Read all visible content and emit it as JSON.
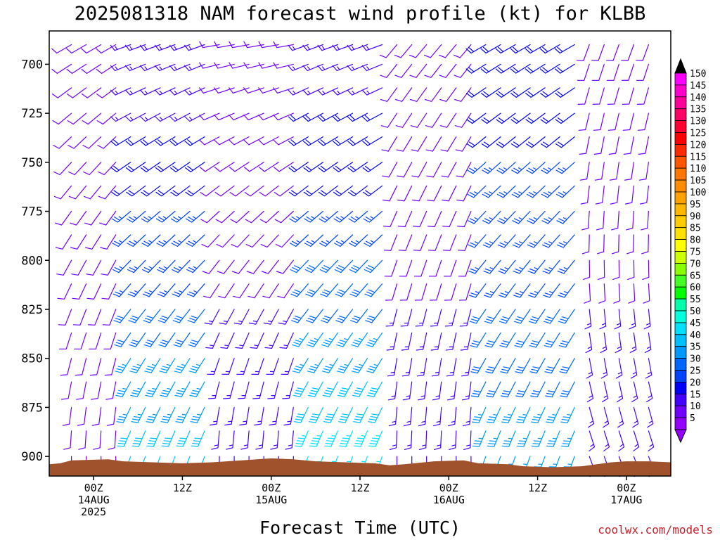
{
  "chart_data": {
    "type": "wind_barb_profile",
    "title": "2025081318 NAM forecast wind profile (kt) for KLBB",
    "xlabel": "Forecast Time (UTC)",
    "ylabel": "",
    "y_axis": {
      "unit": "hPa",
      "ticks": [
        "700",
        "725",
        "750",
        "775",
        "800",
        "825",
        "850",
        "875",
        "900"
      ],
      "range": [
        683,
        910
      ],
      "inverted": true
    },
    "x_axis": {
      "ticks": [
        {
          "hour": 0,
          "line1": "00Z",
          "line2": "14AUG",
          "line3": "2025"
        },
        {
          "hour": 12,
          "line1": "12Z",
          "line2": "",
          "line3": ""
        },
        {
          "hour": 24,
          "line1": "00Z",
          "line2": "15AUG",
          "line3": ""
        },
        {
          "hour": 36,
          "line1": "12Z",
          "line2": "",
          "line3": ""
        },
        {
          "hour": 48,
          "line1": "00Z",
          "line2": "16AUG",
          "line3": ""
        },
        {
          "hour": 60,
          "line1": "12Z",
          "line2": "",
          "line3": ""
        },
        {
          "hour": 72,
          "line1": "00Z",
          "line2": "17AUG",
          "line3": ""
        }
      ],
      "range": [
        -6,
        78
      ]
    },
    "colorbar": {
      "labels": [
        "150",
        "145",
        "140",
        "135",
        "130",
        "125",
        "120",
        "115",
        "110",
        "105",
        "100",
        "95",
        "90",
        "85",
        "80",
        "75",
        "70",
        "65",
        "60",
        "55",
        "50",
        "45",
        "40",
        "35",
        "30",
        "25",
        "20",
        "15",
        "10",
        "5"
      ],
      "colors": [
        "#ff00ff",
        "#ff00cc",
        "#ff0099",
        "#ff0066",
        "#ff0033",
        "#ff0000",
        "#ff2a00",
        "#ff5500",
        "#ff7700",
        "#ff8c00",
        "#ffa200",
        "#ffb700",
        "#ffcc00",
        "#ffe100",
        "#ffff00",
        "#ccff00",
        "#88ff00",
        "#44ff22",
        "#00ff00",
        "#00ffaa",
        "#00ffdd",
        "#00e0ff",
        "#00c0ff",
        "#0099ff",
        "#0066ff",
        "#0044ff",
        "#0000ff",
        "#4400ff",
        "#7000ff",
        "#9400ff"
      ],
      "top_color": "#000000",
      "bottom_color": "#9400ff"
    },
    "terrain_color": "#a0522d",
    "barb_times_hours": [
      -3,
      -1,
      1,
      3,
      5,
      7,
      9,
      11,
      13,
      15,
      17,
      19,
      21,
      23,
      25,
      27,
      29,
      31,
      33,
      35,
      37,
      39,
      41,
      43,
      45,
      47,
      49,
      51,
      53,
      55,
      57,
      59,
      61,
      63,
      65,
      67,
      69,
      71,
      73,
      75
    ],
    "barb_levels_hpa": [
      690,
      700,
      712,
      725,
      737,
      750,
      762,
      775,
      787,
      800,
      812,
      825,
      837,
      850,
      862,
      875,
      887,
      900
    ],
    "wind_regimes": [
      {
        "start_hour": -6,
        "end_hour": 4,
        "upper_dir": 240,
        "upper_kt": 10,
        "lower_dir": 180,
        "lower_kt": 10
      },
      {
        "start_hour": 4,
        "end_hour": 16,
        "upper_dir": 250,
        "upper_kt": 15,
        "lower_dir": 200,
        "lower_kt": 40
      },
      {
        "start_hour": 16,
        "end_hour": 28,
        "upper_dir": 260,
        "upper_kt": 10,
        "lower_dir": 180,
        "lower_kt": 15
      },
      {
        "start_hour": 28,
        "end_hour": 40,
        "upper_dir": 250,
        "upper_kt": 15,
        "lower_dir": 200,
        "lower_kt": 45
      },
      {
        "start_hour": 40,
        "end_hour": 52,
        "upper_dir": 220,
        "upper_kt": 10,
        "lower_dir": 180,
        "lower_kt": 15
      },
      {
        "start_hour": 52,
        "end_hour": 66,
        "upper_dir": 240,
        "upper_kt": 20,
        "lower_dir": 200,
        "lower_kt": 35
      },
      {
        "start_hour": 66,
        "end_hour": 78,
        "upper_dir": 200,
        "upper_kt": 10,
        "lower_dir": 160,
        "lower_kt": 15
      }
    ]
  },
  "credit": "coolwx.com/models"
}
